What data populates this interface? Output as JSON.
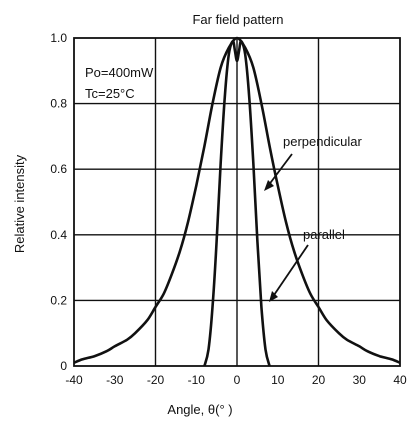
{
  "chart_data": {
    "type": "line",
    "title": "Far field pattern",
    "xlabel": "Angle,  θ(°  )",
    "ylabel": "Relative intensity",
    "xlim": [
      -40,
      40
    ],
    "ylim": [
      0,
      1.0
    ],
    "xticks": [
      "-40",
      "-30",
      "-20",
      "-10",
      "0",
      "10",
      "20",
      "30",
      "40"
    ],
    "yticks": [
      "0",
      "0.2",
      "0.4",
      "0.6",
      "0.8",
      "1.0"
    ],
    "grid": true,
    "annotations": {
      "conditions_line1": "Po=400mW",
      "conditions_line2": "Tc=25°C",
      "perpendicular_label": "perpendicular",
      "parallel_label": "parallel"
    },
    "series": [
      {
        "name": "perpendicular",
        "x": [
          -40,
          -38,
          -35,
          -32,
          -30,
          -27,
          -25,
          -22,
          -20,
          -18,
          -16,
          -14,
          -12,
          -10,
          -8,
          -6,
          -4,
          -2,
          0,
          2,
          4,
          6,
          8,
          10,
          12,
          14,
          16,
          18,
          20,
          22,
          25,
          27,
          30,
          32,
          35,
          38,
          40
        ],
        "y": [
          0.01,
          0.02,
          0.03,
          0.045,
          0.06,
          0.08,
          0.1,
          0.14,
          0.18,
          0.22,
          0.28,
          0.35,
          0.44,
          0.55,
          0.67,
          0.8,
          0.91,
          0.97,
          1.0,
          0.97,
          0.91,
          0.8,
          0.67,
          0.55,
          0.44,
          0.35,
          0.28,
          0.22,
          0.18,
          0.14,
          0.1,
          0.08,
          0.06,
          0.045,
          0.03,
          0.02,
          0.01
        ]
      },
      {
        "name": "parallel",
        "x": [
          -8,
          -7,
          -6,
          -5,
          -4,
          -3,
          -2,
          -1,
          -0.5,
          0,
          0.5,
          1,
          2,
          3,
          4,
          5,
          6,
          7,
          8
        ],
        "y": [
          0.0,
          0.05,
          0.18,
          0.38,
          0.62,
          0.82,
          0.95,
          0.99,
          0.96,
          0.93,
          0.96,
          0.99,
          0.95,
          0.82,
          0.62,
          0.38,
          0.18,
          0.05,
          0.0
        ]
      }
    ]
  }
}
